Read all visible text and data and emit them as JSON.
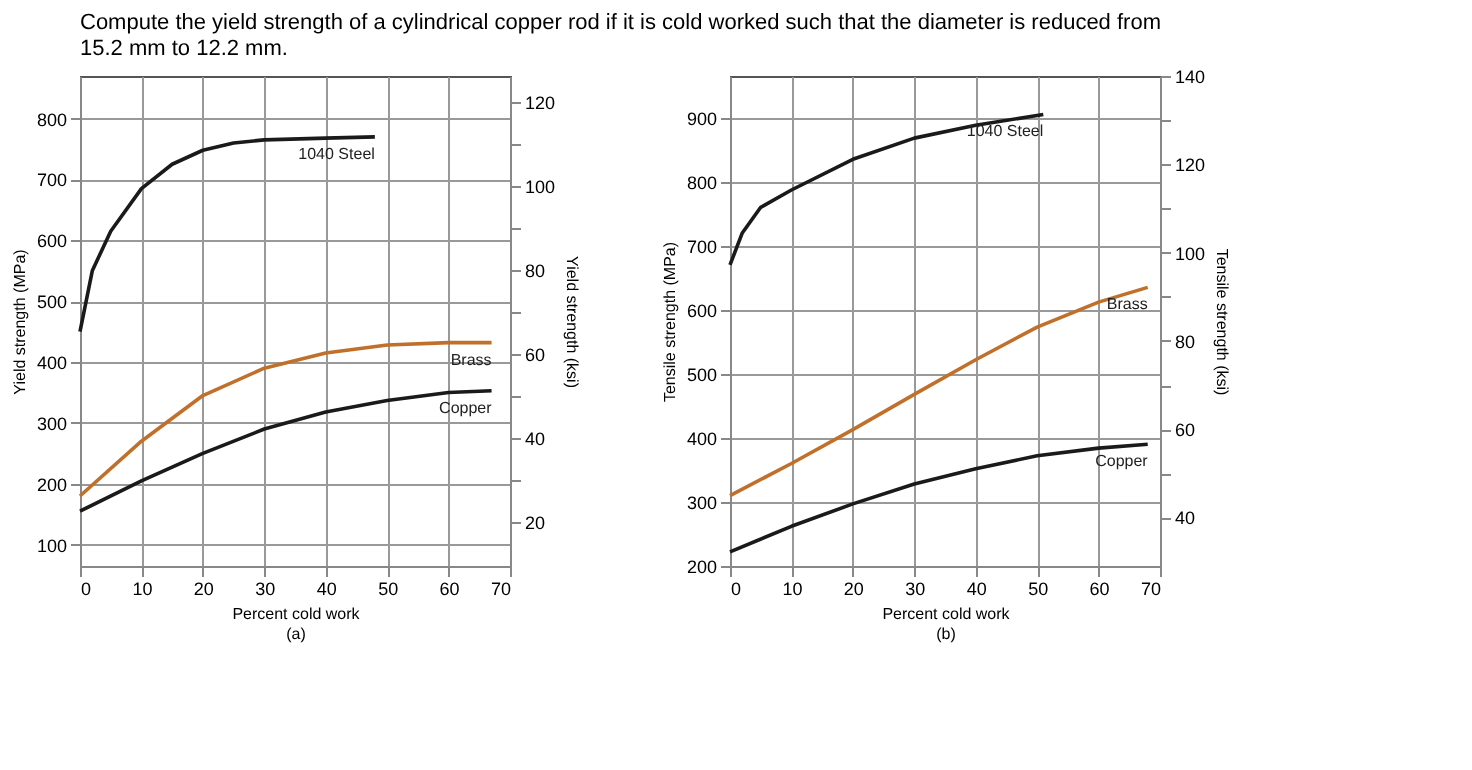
{
  "chart_data": [
    {
      "type": "line",
      "title": "Compute the yield strength of a cylindrical copper rod if it is cold worked such that the diameter is reduced from 15.2 mm to 12.2 mm.",
      "xlabel": "Percent cold work",
      "ylabel": "Yield strength (MPa)",
      "y2label": "Yield strength (ksi)",
      "annotations": [
        "(a)"
      ],
      "grid": true,
      "xlim": [
        0,
        70
      ],
      "xticks": [
        0,
        10,
        20,
        30,
        40,
        50,
        60,
        70
      ],
      "ylim": [
        65,
        870
      ],
      "yticks": [
        100,
        200,
        300,
        400,
        500,
        600,
        700,
        800
      ],
      "y2lim": [
        9.4,
        126.2
      ],
      "y2ticks": [
        20,
        {
          "value": 30,
          "label": null
        },
        40,
        {
          "value": 50,
          "label": null
        },
        60,
        {
          "value": 70,
          "label": null
        },
        80,
        {
          "value": 90,
          "label": null
        },
        100,
        {
          "value": 110,
          "label": null
        },
        120
      ],
      "series": [
        {
          "name": "1040 Steel",
          "color": "#1a1a1a",
          "x": [
            0,
            2,
            5,
            10,
            15,
            20,
            25,
            30,
            40,
            48
          ],
          "values": [
            450,
            550,
            615,
            685,
            725,
            748,
            760,
            765,
            768,
            770
          ]
        },
        {
          "name": "Brass",
          "color": "#c0702a",
          "x": [
            0,
            10,
            20,
            30,
            40,
            50,
            60,
            67
          ],
          "values": [
            180,
            270,
            345,
            390,
            415,
            428,
            432,
            432
          ]
        },
        {
          "name": "Copper",
          "color": "#1a1a1a",
          "x": [
            0,
            10,
            20,
            30,
            40,
            50,
            60,
            67
          ],
          "values": [
            155,
            205,
            250,
            290,
            318,
            337,
            350,
            353
          ]
        }
      ]
    },
    {
      "type": "line",
      "xlabel": "Percent cold work",
      "ylabel": "Tensile strength (MPa)",
      "y2label": "Tensile strength (ksi)",
      "annotations": [
        "(b)"
      ],
      "grid": true,
      "xlim": [
        0,
        70
      ],
      "xticks": [
        0,
        10,
        20,
        30,
        40,
        50,
        60,
        70
      ],
      "ylim": [
        200,
        965
      ],
      "yticks": [
        200,
        300,
        400,
        500,
        600,
        700,
        800,
        900
      ],
      "y2lim": [
        29,
        140
      ],
      "y2ticks": [
        40,
        {
          "value": 50,
          "label": null
        },
        60,
        {
          "value": 70,
          "label": null
        },
        80,
        {
          "value": 90,
          "label": null
        },
        100,
        {
          "value": 110,
          "label": null
        },
        120,
        {
          "value": 130,
          "label": null
        },
        140
      ],
      "series": [
        {
          "name": "1040 Steel",
          "color": "#1a1a1a",
          "x": [
            0,
            2,
            5,
            10,
            20,
            30,
            40,
            51
          ],
          "values": [
            670,
            720,
            760,
            787,
            835,
            868,
            888,
            905
          ]
        },
        {
          "name": "Brass",
          "color": "#c0702a",
          "x": [
            0,
            10,
            20,
            30,
            40,
            50,
            60,
            68
          ],
          "values": [
            310,
            360,
            413,
            468,
            522,
            573,
            612,
            635
          ]
        },
        {
          "name": "Copper",
          "color": "#1a1a1a",
          "x": [
            0,
            10,
            20,
            30,
            40,
            50,
            60,
            68
          ],
          "values": [
            222,
            262,
            297,
            328,
            352,
            372,
            384,
            390
          ]
        }
      ]
    }
  ]
}
